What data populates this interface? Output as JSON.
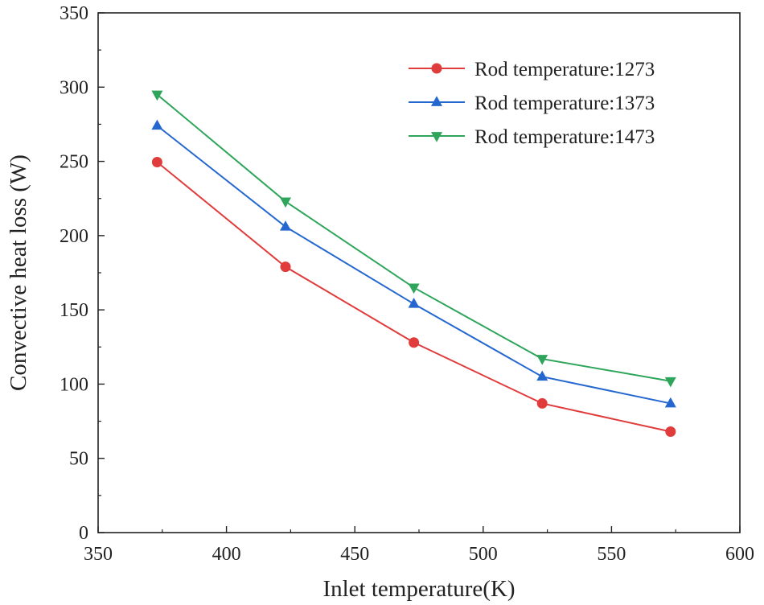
{
  "chart_data": {
    "type": "line",
    "title": "",
    "xlabel": "Inlet temperature(K)",
    "ylabel": "Convective heat loss (W)",
    "xlim": [
      350,
      600
    ],
    "ylim": [
      0,
      350
    ],
    "x_ticks": [
      "350",
      "400",
      "450",
      "500",
      "550",
      "600"
    ],
    "y_ticks": [
      "0",
      "50",
      "100",
      "150",
      "200",
      "250",
      "300",
      "350"
    ],
    "x": [
      373,
      423,
      473,
      523,
      573
    ],
    "legend_position": "top-right",
    "series": [
      {
        "name": "Rod temperature:1273",
        "marker": "circle",
        "color": "#e03c3c",
        "values": [
          249.5,
          179,
          128,
          87,
          68
        ]
      },
      {
        "name": "Rod temperature:1373",
        "marker": "triangle-up",
        "color": "#2468cf",
        "values": [
          274,
          206,
          154,
          105,
          87
        ]
      },
      {
        "name": "Rod temperature:1473",
        "marker": "triangle-down",
        "color": "#2ea55a",
        "values": [
          295,
          223,
          165,
          117,
          102
        ]
      }
    ]
  }
}
